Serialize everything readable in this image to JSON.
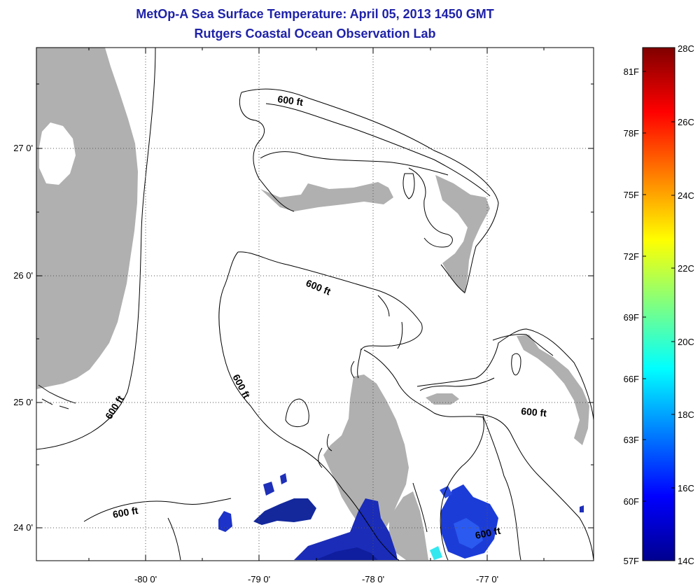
{
  "title": "MetOp-A Sea Surface Temperature:  April 05, 2013 1450 GMT",
  "subtitle": "Rutgers Coastal Ocean Observation Lab",
  "map": {
    "x_ticks": [
      "-80 0'",
      "-79 0'",
      "-78 0'",
      "-77 0'"
    ],
    "y_ticks": [
      "27 0'",
      "26 0'",
      "25 0'",
      "24 0'"
    ],
    "contour_labels": [
      "600 ft",
      "600 ft",
      "600 ft",
      "600 ft",
      "600 ft",
      "600 ft"
    ]
  },
  "colorbar": {
    "f_labels": [
      "81F",
      "78F",
      "75F",
      "72F",
      "69F",
      "66F",
      "63F",
      "60F",
      "57F"
    ],
    "c_labels": [
      "28C",
      "26C",
      "24C",
      "22C",
      "20C",
      "18C",
      "16C",
      "14C"
    ],
    "min_c": 14,
    "max_c": 28,
    "colormap": [
      "#00008f",
      "#0000ff",
      "#00ffff",
      "#ffff00",
      "#ff0000",
      "#800000"
    ]
  },
  "colors": {
    "title": "#1f22a8",
    "land": "#b0b0b0",
    "sst_cold": "#1428b4"
  }
}
